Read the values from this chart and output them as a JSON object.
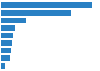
{
  "values": [
    1000,
    770,
    270,
    150,
    135,
    120,
    110,
    100,
    40
  ],
  "bar_color": "#2980c4",
  "background_color": "#ffffff",
  "grid_color": "#d9d9d9",
  "xlim_max": 1080,
  "bar_height": 0.72
}
